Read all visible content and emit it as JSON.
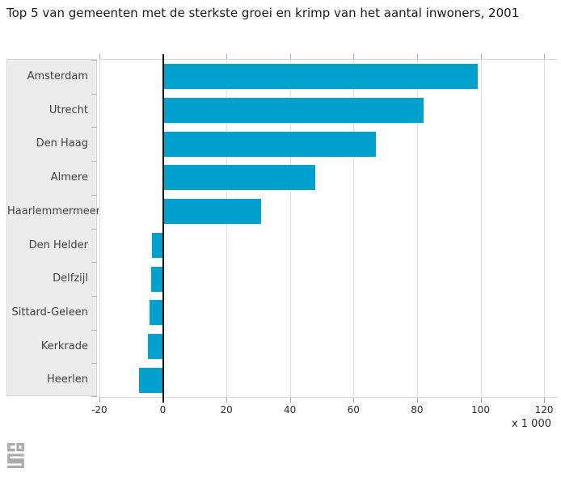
{
  "title": "Top 5 van gemeenten met de sterkste groei en krimp van het aantal inwoners, 2001",
  "chart_data": {
    "type": "bar",
    "orientation": "horizontal",
    "title": "Top 5 van gemeenten met de sterkste groei en krimp van het aantal inwoners, 2001",
    "categories": [
      "Amsterdam",
      "Utrecht",
      "Den Haag",
      "Almere",
      "Haarlemmermeer",
      "Den Helder",
      "Delfzijl",
      "Sittard-Geleen",
      "Kerkrade",
      "Heerlen"
    ],
    "values": [
      99,
      82,
      67,
      48,
      31,
      -3.4,
      -3.8,
      -4.3,
      -4.8,
      -7.6
    ],
    "x_ticks": [
      -20,
      0,
      20,
      40,
      60,
      80,
      100,
      120
    ],
    "xlim": [
      -20,
      124
    ],
    "unit_label": "x 1 000",
    "xlabel": "",
    "ylabel": "",
    "grid": true,
    "legend": "none",
    "bar_color": "#00a1cd",
    "zero_line_color": "#000000",
    "panel_color": "#ececec"
  },
  "footer": {
    "logo_icon": "cbs-logo"
  }
}
